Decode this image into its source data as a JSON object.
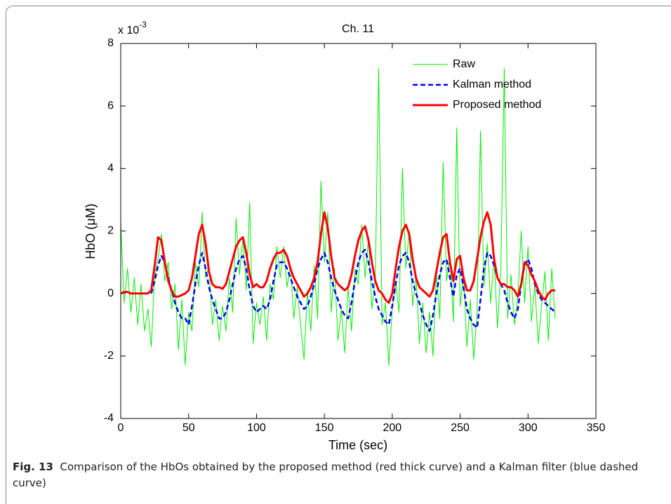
{
  "chart_data": {
    "type": "line",
    "title": "Ch. 11",
    "axis_multiplier": {
      "base": "x 10",
      "exponent": "-3"
    },
    "xlabel": "Time (sec)",
    "ylabel": "HbO (μM)",
    "xlim": [
      0,
      350
    ],
    "xticks": [
      0,
      50,
      100,
      150,
      200,
      250,
      300,
      350
    ],
    "ylim": [
      -4,
      8
    ],
    "yticks": [
      -4,
      -2,
      0,
      2,
      4,
      6,
      8
    ],
    "legend": "upper right",
    "x": [
      0,
      2.5,
      5,
      7.5,
      10,
      12.5,
      15,
      17.5,
      20,
      22.5,
      25,
      27.5,
      30,
      32.5,
      35,
      37.5,
      40,
      42.5,
      45,
      47.5,
      50,
      52.5,
      55,
      57.5,
      60,
      62.5,
      65,
      67.5,
      70,
      72.5,
      75,
      77.5,
      80,
      82.5,
      85,
      87.5,
      90,
      92.5,
      95,
      97.5,
      100,
      102.5,
      105,
      107.5,
      110,
      112.5,
      115,
      117.5,
      120,
      122.5,
      125,
      127.5,
      130,
      132.5,
      135,
      137.5,
      140,
      142.5,
      145,
      147.5,
      150,
      152.5,
      155,
      157.5,
      160,
      162.5,
      165,
      167.5,
      170,
      172.5,
      175,
      177.5,
      180,
      182.5,
      185,
      187.5,
      190,
      192.5,
      195,
      197.5,
      200,
      202.5,
      205,
      207.5,
      210,
      212.5,
      215,
      217.5,
      220,
      222.5,
      225,
      227.5,
      230,
      232.5,
      235,
      237.5,
      240,
      242.5,
      245,
      247.5,
      250,
      252.5,
      255,
      257.5,
      260,
      262.5,
      265,
      267.5,
      270,
      272.5,
      275,
      277.5,
      280,
      282.5,
      285,
      287.5,
      290,
      292.5,
      295,
      297.5,
      300,
      302.5,
      305,
      307.5,
      310,
      312.5,
      315,
      317.5,
      320
    ],
    "series": [
      {
        "name": "Raw",
        "color": "#00ee00",
        "line_style": "solid",
        "line_width": 1,
        "values": [
          2.3,
          -0.3,
          0.8,
          -0.6,
          0.5,
          -1.0,
          0.3,
          -1.2,
          -0.5,
          -1.7,
          0.6,
          1.1,
          1.9,
          0.4,
          1.0,
          -0.5,
          0.3,
          -1.8,
          -0.2,
          -2.3,
          -0.6,
          -1.2,
          1.0,
          0.2,
          2.6,
          0.5,
          0.9,
          -1.0,
          -0.2,
          -1.5,
          -0.4,
          -1.2,
          0.5,
          -0.6,
          2.4,
          0.6,
          1.8,
          0.1,
          2.9,
          -1.6,
          -0.3,
          -1.0,
          -0.1,
          -1.5,
          0.3,
          -0.2,
          1.5,
          0.5,
          1.5,
          0.2,
          0.9,
          -0.8,
          0.2,
          -1.0,
          -2.1,
          0.1,
          -1.2,
          0.9,
          -0.8,
          3.6,
          1.0,
          2.6,
          -0.6,
          0.8,
          -1.5,
          -0.5,
          -1.9,
          0.2,
          -1.2,
          0.8,
          0.3,
          2.2,
          0.5,
          1.8,
          -0.5,
          0.5,
          7.2,
          -1.0,
          -0.3,
          -2.3,
          -0.5,
          0.4,
          -0.6,
          4.0,
          0.8,
          2.0,
          -0.4,
          0.6,
          -1.6,
          -0.3,
          -1.9,
          -0.6,
          -2.0,
          0.7,
          -0.8,
          4.2,
          0.4,
          1.2,
          -0.9,
          5.3,
          -0.4,
          0.6,
          -1.7,
          -0.2,
          -2.1,
          -0.6,
          5.2,
          0.2,
          1.6,
          -0.3,
          1.2,
          -1.1,
          0.8,
          7.2,
          -0.8,
          0.6,
          -1.0,
          -0.1,
          2.0,
          -0.3,
          1.5,
          -0.9,
          0.3,
          -1.6,
          -0.4,
          0.7,
          -1.5,
          0.8,
          -0.8
        ]
      },
      {
        "name": "Kalman method",
        "color": "#0000ff",
        "line_style": "dashed",
        "line_width": 2.5,
        "values": [
          null,
          null,
          null,
          null,
          null,
          null,
          null,
          null,
          null,
          0,
          0.4,
          0.9,
          1.2,
          1.0,
          0.5,
          0.1,
          -0.3,
          -0.6,
          -0.8,
          -0.8,
          -1.0,
          -0.4,
          0.3,
          0.9,
          1.3,
          0.8,
          0.2,
          -0.2,
          -0.5,
          -0.8,
          -0.8,
          -0.6,
          -0.2,
          0.3,
          0.8,
          1.1,
          1.2,
          0.8,
          0.1,
          -0.4,
          -0.6,
          -0.5,
          -0.4,
          -0.5,
          -0.2,
          0.4,
          0.9,
          1.0,
          1.0,
          0.8,
          0.5,
          0.2,
          -0.1,
          -0.3,
          -0.5,
          -0.4,
          -0.1,
          0.3,
          0.8,
          1.1,
          1.3,
          1.0,
          0.5,
          0.1,
          -0.2,
          -0.5,
          -0.7,
          -0.8,
          -0.3,
          0.4,
          1.0,
          1.3,
          1.4,
          1.0,
          0.4,
          -0.1,
          -0.5,
          -0.7,
          -0.9,
          -1.0,
          -0.4,
          0.3,
          0.9,
          1.2,
          1.3,
          1.0,
          0.4,
          0,
          -0.3,
          -0.7,
          -1.0,
          -1.2,
          -0.7,
          0,
          0.6,
          1.0,
          1.1,
          0.5,
          -0.1,
          0.6,
          0.8,
          0.2,
          -0.5,
          -0.8,
          -1.0,
          -1.1,
          -0.2,
          0.8,
          1.3,
          1.2,
          0.9,
          0.5,
          0.3,
          0.1,
          -0.3,
          -0.6,
          -0.8,
          -0.5,
          0.3,
          0.9,
          1.1,
          0.8,
          0.3,
          0,
          -0.2,
          -0.3,
          -0.4,
          -0.5,
          -0.6
        ]
      },
      {
        "name": "Proposed method",
        "color": "#ff0000",
        "line_style": "solid",
        "line_width": 3,
        "values": [
          0,
          0.05,
          0.05,
          0,
          0,
          0,
          0,
          0,
          0,
          0.1,
          0.9,
          1.8,
          1.7,
          1.0,
          0.4,
          0.1,
          -0.1,
          -0.1,
          -0.05,
          0,
          0.1,
          0.5,
          1.2,
          1.9,
          2.2,
          1.6,
          0.7,
          0.3,
          0.2,
          0.2,
          0.15,
          0.3,
          0.7,
          1.1,
          1.5,
          1.7,
          1.8,
          1.3,
          0.6,
          0.2,
          0.3,
          0.2,
          0.2,
          0.4,
          0.8,
          1.1,
          1.3,
          1.3,
          1.4,
          1.2,
          0.8,
          0.5,
          0.3,
          0.1,
          -0.1,
          0,
          0.2,
          0.5,
          1.0,
          1.9,
          2.6,
          2.1,
          1.2,
          0.5,
          0.3,
          0.2,
          0.1,
          0.2,
          0.6,
          1.2,
          1.7,
          2.0,
          2.15,
          1.7,
          1.0,
          0.4,
          0.1,
          0,
          -0.2,
          -0.3,
          0,
          0.8,
          1.5,
          2.0,
          2.2,
          1.9,
          1.1,
          0.5,
          0.2,
          0.1,
          0,
          -0.1,
          0.1,
          0.7,
          1.3,
          1.8,
          1.9,
          1.0,
          0.4,
          1.1,
          1.2,
          0.5,
          0.1,
          0.1,
          0.4,
          1.1,
          1.8,
          2.3,
          2.6,
          2.2,
          1.1,
          0.5,
          0.3,
          0.3,
          0.2,
          0.2,
          0.1,
          -0.1,
          0.3,
          1.0,
          0.9,
          0.6,
          0.4,
          0.1,
          -0.1,
          -0.2,
          0,
          0.1,
          0.1
        ]
      }
    ]
  },
  "caption": {
    "label": "Fig. 13",
    "text": "Comparison of the HbOs obtained by the proposed method (red thick curve) and a Kalman filter (blue dashed curve)"
  }
}
